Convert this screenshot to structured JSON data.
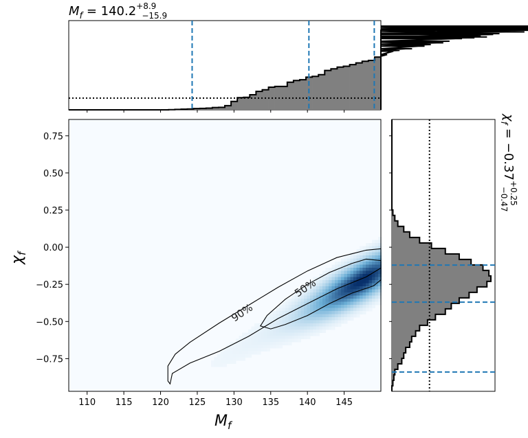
{
  "chart_data": {
    "type": "heatmap",
    "title": "",
    "top_title": {
      "base": "140.2",
      "plus": "+8.9",
      "minus": "−15.9",
      "symbol": "M",
      "sub": "f"
    },
    "right_title": {
      "base": "−0.37",
      "plus": "+0.25",
      "minus": "−0.47",
      "symbol": "χ",
      "sub": "f"
    },
    "xlabel": {
      "symbol": "M",
      "sub": "f"
    },
    "ylabel": {
      "symbol": "χ",
      "sub": "f"
    },
    "xlim": [
      107.5,
      150
    ],
    "ylim": [
      -0.97,
      0.86
    ],
    "xticks": [
      110,
      115,
      120,
      125,
      130,
      135,
      140,
      145
    ],
    "xtick_labels": [
      "110",
      "115",
      "120",
      "125",
      "130",
      "135",
      "140",
      "145"
    ],
    "yticks": [
      0.75,
      0.5,
      0.25,
      0.0,
      -0.25,
      -0.5,
      -0.75
    ],
    "ytick_labels": [
      "0.75",
      "0.50",
      "0.25",
      "0.00",
      "−0.25",
      "−0.50",
      "−0.75"
    ],
    "contour_labels": [
      "90%",
      "50%"
    ],
    "contours": {
      "c90": [
        [
          121.3,
          -0.92
        ],
        [
          121.6,
          -0.85
        ],
        [
          124,
          -0.78
        ],
        [
          128,
          -0.7
        ],
        [
          132,
          -0.6
        ],
        [
          136,
          -0.48
        ],
        [
          140,
          -0.38
        ],
        [
          144,
          -0.28
        ],
        [
          148,
          -0.2
        ],
        [
          150,
          -0.14
        ],
        [
          150,
          -0.01
        ],
        [
          148,
          -0.02
        ],
        [
          144,
          -0.07
        ],
        [
          140,
          -0.16
        ],
        [
          136,
          -0.27
        ],
        [
          132,
          -0.39
        ],
        [
          128,
          -0.51
        ],
        [
          124,
          -0.64
        ],
        [
          122,
          -0.72
        ],
        [
          121,
          -0.8
        ],
        [
          121.0,
          -0.9
        ]
      ],
      "c50": [
        [
          133.6,
          -0.53
        ],
        [
          135,
          -0.55
        ],
        [
          137,
          -0.52
        ],
        [
          140,
          -0.46
        ],
        [
          143,
          -0.38
        ],
        [
          146,
          -0.31
        ],
        [
          149,
          -0.26
        ],
        [
          150,
          -0.22
        ],
        [
          150,
          -0.09
        ],
        [
          148,
          -0.08
        ],
        [
          146,
          -0.11
        ],
        [
          143,
          -0.17
        ],
        [
          140,
          -0.25
        ],
        [
          137,
          -0.35
        ],
        [
          134.5,
          -0.46
        ]
      ]
    },
    "heat_peak": {
      "x": 146,
      "y": -0.21
    },
    "marginal_x": {
      "bin_edges_start": 107.5,
      "bin_width": 0.85,
      "counts": [
        0,
        0,
        0,
        0,
        0,
        0,
        0,
        0,
        0,
        0,
        0,
        0,
        0,
        0,
        0,
        0,
        0.2,
        0.5,
        0.8,
        1,
        1.5,
        1.7,
        2,
        2.8,
        3,
        5,
        10,
        14.5,
        15,
        18,
        22,
        24,
        27,
        28,
        28,
        33,
        35,
        36,
        39,
        40,
        42,
        47,
        49,
        51,
        52,
        54,
        56,
        58,
        59,
        63,
        64,
        66,
        70,
        71,
        73,
        73,
        76,
        76,
        78,
        80,
        80,
        82,
        85,
        85,
        86,
        86,
        88,
        87,
        90,
        91,
        93,
        95,
        96,
        93,
        98,
        96,
        97,
        100,
        96,
        98,
        100,
        97,
        98,
        96,
        97,
        99,
        97,
        96,
        96,
        95
      ],
      "prior_level": 14,
      "quantile_lines": [
        124.3,
        140.2,
        149.1
      ],
      "color_fill": "#808080"
    },
    "marginal_y": {
      "bin_edges_start": -0.97,
      "bin_width": 0.037,
      "counts": [
        0,
        1,
        2,
        3,
        6,
        10,
        12,
        14,
        18,
        20,
        24,
        28,
        36,
        44,
        54,
        60,
        68,
        78,
        86,
        96,
        100,
        98,
        92,
        80,
        68,
        54,
        40,
        28,
        18,
        12,
        6,
        3,
        1,
        0,
        0,
        0,
        0,
        0,
        0,
        0,
        0,
        0,
        0,
        0,
        0,
        0,
        0,
        0,
        0,
        0
      ],
      "prior_level": 38,
      "quantile_lines": [
        -0.84,
        -0.37,
        -0.12
      ],
      "color_fill": "#808080"
    },
    "colors": {
      "line": "#000000",
      "quantile": "#1f77b4",
      "heat_low": "#f7fbff",
      "heat_high": "#08306b"
    },
    "grid": false
  }
}
